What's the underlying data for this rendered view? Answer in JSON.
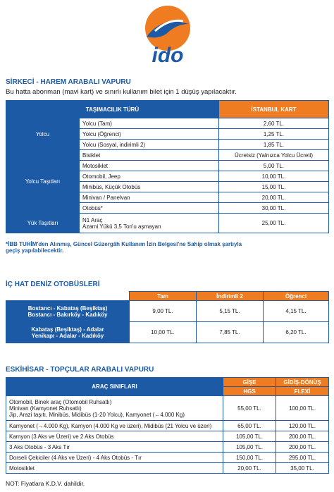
{
  "logo": {
    "text": "ido"
  },
  "section1": {
    "title": "SİRKECİ - HAREM ARABALI VAPURU",
    "subtitle": "Bu hatta abonman (mavi kart) ve sınırlı kullanım bilet için 1 düşüş yapılacaktır.",
    "headers": [
      "TAŞIMACILIK TÜRÜ",
      "İSTANBUL KART"
    ],
    "groups": [
      {
        "label": "Yolcu",
        "rows": [
          {
            "item": [
              "Yolcu (Tam)"
            ],
            "price": "2,60 TL."
          },
          {
            "item": [
              "Yolcu (Öğrenci)"
            ],
            "price": "1,25 TL."
          },
          {
            "item": [
              "Yolcu (Sosyal, indirimli 2)"
            ],
            "price": "1,85 TL."
          }
        ]
      },
      {
        "label": "Yolcu Taşıtları",
        "rows": [
          {
            "item": [
              "Bisiklet"
            ],
            "price": "Ücretsiz (Yalnızca Yolcu Ücreti)"
          },
          {
            "item": [
              "Motosiklet"
            ],
            "price": "5,00 TL."
          },
          {
            "item": [
              "Otomobil, Jeep"
            ],
            "price": "10,00 TL."
          },
          {
            "item": [
              "Minibüs, Küçük Otobüs"
            ],
            "price": "15,00 TL."
          },
          {
            "item": [
              "Minivan / Panelvan"
            ],
            "price": "20,00 TL."
          },
          {
            "item": [
              "Otobüs*"
            ],
            "price": "30,00 TL."
          }
        ]
      },
      {
        "label": "Yük Taşıtları",
        "rows": [
          {
            "item": [
              "N1 Araç",
              "Azami Yükü 3,5 Ton'u aşmayan"
            ],
            "price": "25,00 TL."
          }
        ]
      }
    ],
    "note": [
      "*İBB TUHİM'den Alınmış, Güncel Güzergâh Kullanım İzin Belgesi'ne Sahip olmak şartıyla",
      "geçiş yapılabilecektir."
    ]
  },
  "section2": {
    "title": "İÇ HAT DENİZ OTOBÜSLERİ",
    "headers": [
      "Tam",
      "İndirimli 2",
      "Öğrenci"
    ],
    "rows": [
      {
        "route": [
          "Bostancı - Kabataş (Beşiktaş)",
          "Bostancı - Bakırköy - Kadıköy"
        ],
        "prices": [
          "9,00 TL.",
          "5,15 TL.",
          "4,15 TL."
        ]
      },
      {
        "route": [
          "Kabataş (Beşiktaş) - Adalar",
          "Yenikapı - Adalar - Kadıköy"
        ],
        "prices": [
          "10,00 TL.",
          "7,85 TL.",
          "6,20 TL."
        ]
      }
    ]
  },
  "section3": {
    "title": "ESKİHİSAR - TOPÇULAR ARABALI VAPURU",
    "headers": [
      "ARAÇ SINIFLARI",
      "GİŞE",
      "HGS",
      "GİDİŞ-DÖNÜŞ",
      "FLEXİ"
    ],
    "rows": [
      {
        "vehicle": [
          "Otomobil, Binek araç (Otomobil Ruhsatlı)",
          "Minivan (Kamyonet Ruhsatlı)",
          "Jip, Arazi taşıtı, Minibüs, Midibüs (1-20 Yolcu), Kamyonet (←4.000 Kg)"
        ],
        "prices": [
          "55,00 TL.",
          "100,00 TL."
        ]
      },
      {
        "vehicle": [
          "Kamyonet (→4.000 Kg), Kamyon (4.000 Kg ve üzeri), Midibüs (21 Yolcu ve üzeri)"
        ],
        "prices": [
          "65,00 TL.",
          "120,00 TL."
        ]
      },
      {
        "vehicle": [
          "Kamyon (3 Aks ve Üzeri) ve 2 Aks Otobüs"
        ],
        "prices": [
          "105,00 TL.",
          "200,00 TL."
        ]
      },
      {
        "vehicle": [
          "3 Aks Otobüs - 3 Aks Tır"
        ],
        "prices": [
          "105,00 TL.",
          "200,00 TL."
        ]
      },
      {
        "vehicle": [
          "Dorseli Çekiciler (4 Aks ve Üzeri) - 4 Aks Otobüs - Tır"
        ],
        "prices": [
          "150,00 TL.",
          "295,00 TL."
        ]
      },
      {
        "vehicle": [
          "Motosiklet"
        ],
        "prices": [
          "20,00 TL.",
          "35,00 TL."
        ]
      }
    ],
    "note": "NOT: Fiyatlara K.D.V. dahildir."
  }
}
